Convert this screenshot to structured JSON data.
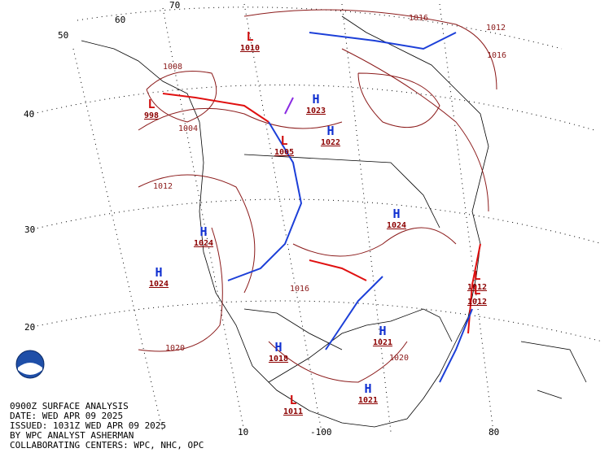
{
  "footer": {
    "lines": [
      "0900Z SURFACE ANALYSIS",
      "DATE: WED APR 09 2025",
      "ISSUED: 1031Z WED APR 09 2025",
      "BY WPC ANALYST ASHERMAN",
      "COLLABORATING CENTERS: WPC, NHC, OPC"
    ]
  },
  "grid_labels": [
    "70",
    "60",
    "50",
    "40",
    "30",
    "20",
    "10",
    "-100",
    "80"
  ],
  "centers": [
    {
      "symbol": "L",
      "pressure": 1010
    },
    {
      "symbol": "L",
      "pressure": 998
    },
    {
      "symbol": "L",
      "pressure": 1005
    },
    {
      "symbol": "H",
      "pressure": 1023
    },
    {
      "symbol": "H",
      "pressure": 1022
    },
    {
      "symbol": "H",
      "pressure": 1024
    },
    {
      "symbol": "H",
      "pressure": 1024
    },
    {
      "symbol": "H",
      "pressure": 1018
    },
    {
      "symbol": "L",
      "pressure": 1011
    },
    {
      "symbol": "H",
      "pressure": 1021
    },
    {
      "symbol": "H",
      "pressure": 1021
    },
    {
      "symbol": "L",
      "pressure": 1012
    },
    {
      "symbol": "L",
      "pressure": 1012
    },
    {
      "symbol": "H",
      "pressure": 1024
    }
  ],
  "isobar_labels": [
    "1004",
    "1012",
    "1020",
    "1016",
    "1012",
    "1016",
    "1008",
    "1020",
    "1016"
  ]
}
